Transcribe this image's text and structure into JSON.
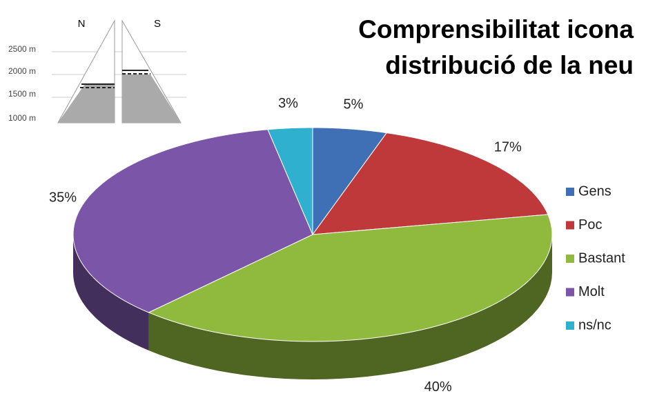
{
  "chart_data": {
    "type": "pie",
    "title": [
      "Comprensibilitat icona",
      "distribució de la neu"
    ],
    "categories": [
      "Gens",
      "Poc",
      "Bastant",
      "Molt",
      "ns/nc"
    ],
    "values": [
      5,
      17,
      40,
      35,
      3
    ],
    "value_labels": [
      "5%",
      "17%",
      "40%",
      "35%",
      "3%"
    ],
    "colors": [
      "#3f6fb5",
      "#c0393a",
      "#8fba3d",
      "#7a55a8",
      "#2fb0cf"
    ],
    "legend": "right"
  },
  "inset": {
    "aspects": [
      "N",
      "S"
    ],
    "altitudes": [
      "2500 m",
      "2000 m",
      "1500 m",
      "1000 m"
    ]
  }
}
